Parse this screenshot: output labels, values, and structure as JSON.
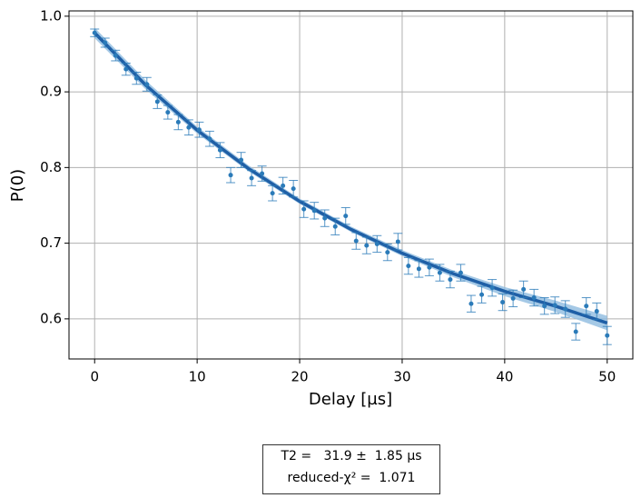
{
  "chart_data": {
    "type": "scatter",
    "xlabel": "Delay [µs]",
    "ylabel": "P(0)",
    "xlim": [
      -2.5,
      52.5
    ],
    "ylim": [
      0.547,
      1.007
    ],
    "xticks": [
      0,
      10,
      20,
      30,
      40,
      50
    ],
    "yticks": [
      0.6,
      0.7,
      0.8,
      0.9,
      {
        "value": 1,
        "label": "1.0"
      }
    ],
    "grid": true,
    "points": {
      "color": "#2b7bb9",
      "x": [
        0,
        1.02,
        2.04,
        3.06,
        4.08,
        5.1,
        6.12,
        7.14,
        8.16,
        9.18,
        10.2,
        11.22,
        12.24,
        13.27,
        14.29,
        15.31,
        16.33,
        17.35,
        18.37,
        19.39,
        20.41,
        21.43,
        22.45,
        23.47,
        24.49,
        25.51,
        26.53,
        27.55,
        28.57,
        29.59,
        30.61,
        31.63,
        32.65,
        33.67,
        34.69,
        35.71,
        36.73,
        37.76,
        38.78,
        39.8,
        40.82,
        41.84,
        42.86,
        43.88,
        44.9,
        45.92,
        46.94,
        47.96,
        48.98,
        50
      ],
      "values": [
        0.978,
        0.965,
        0.948,
        0.93,
        0.918,
        0.91,
        0.887,
        0.873,
        0.86,
        0.853,
        0.85,
        0.838,
        0.823,
        0.79,
        0.81,
        0.786,
        0.792,
        0.766,
        0.776,
        0.772,
        0.745,
        0.743,
        0.733,
        0.722,
        0.736,
        0.703,
        0.697,
        0.699,
        0.688,
        0.702,
        0.67,
        0.666,
        0.668,
        0.661,
        0.652,
        0.661,
        0.62,
        0.632,
        0.641,
        0.622,
        0.627,
        0.639,
        0.628,
        0.617,
        0.618,
        0.613,
        0.583,
        0.617,
        0.61,
        0.578
      ],
      "errors": [
        0.005,
        0.006,
        0.007,
        0.008,
        0.008,
        0.009,
        0.009,
        0.009,
        0.01,
        0.01,
        0.01,
        0.01,
        0.01,
        0.01,
        0.01,
        0.01,
        0.01,
        0.01,
        0.011,
        0.011,
        0.011,
        0.011,
        0.011,
        0.011,
        0.011,
        0.011,
        0.011,
        0.011,
        0.011,
        0.011,
        0.011,
        0.011,
        0.011,
        0.011,
        0.011,
        0.011,
        0.011,
        0.011,
        0.011,
        0.011,
        0.011,
        0.011,
        0.011,
        0.011,
        0.011,
        0.011,
        0.011,
        0.011,
        0.011,
        0.012
      ]
    },
    "fit": {
      "color": "#1f5fa6",
      "band_color": "#8fbbe0",
      "x": [
        0,
        5,
        10,
        15,
        20,
        25,
        30,
        35,
        40,
        45,
        50
      ],
      "values": [
        0.978,
        0.9087,
        0.8494,
        0.7987,
        0.7553,
        0.7183,
        0.6867,
        0.6596,
        0.6364,
        0.6166,
        0.5945
      ],
      "lower": [
        0.971,
        0.903,
        0.845,
        0.795,
        0.752,
        0.715,
        0.683,
        0.655,
        0.63,
        0.609,
        0.585
      ],
      "upper": [
        0.985,
        0.915,
        0.854,
        0.803,
        0.759,
        0.722,
        0.691,
        0.664,
        0.642,
        0.624,
        0.604
      ]
    },
    "annotation": [
      "T2 =   31.9 ±  1.85 µs",
      "reduced-χ² =  1.071"
    ]
  }
}
